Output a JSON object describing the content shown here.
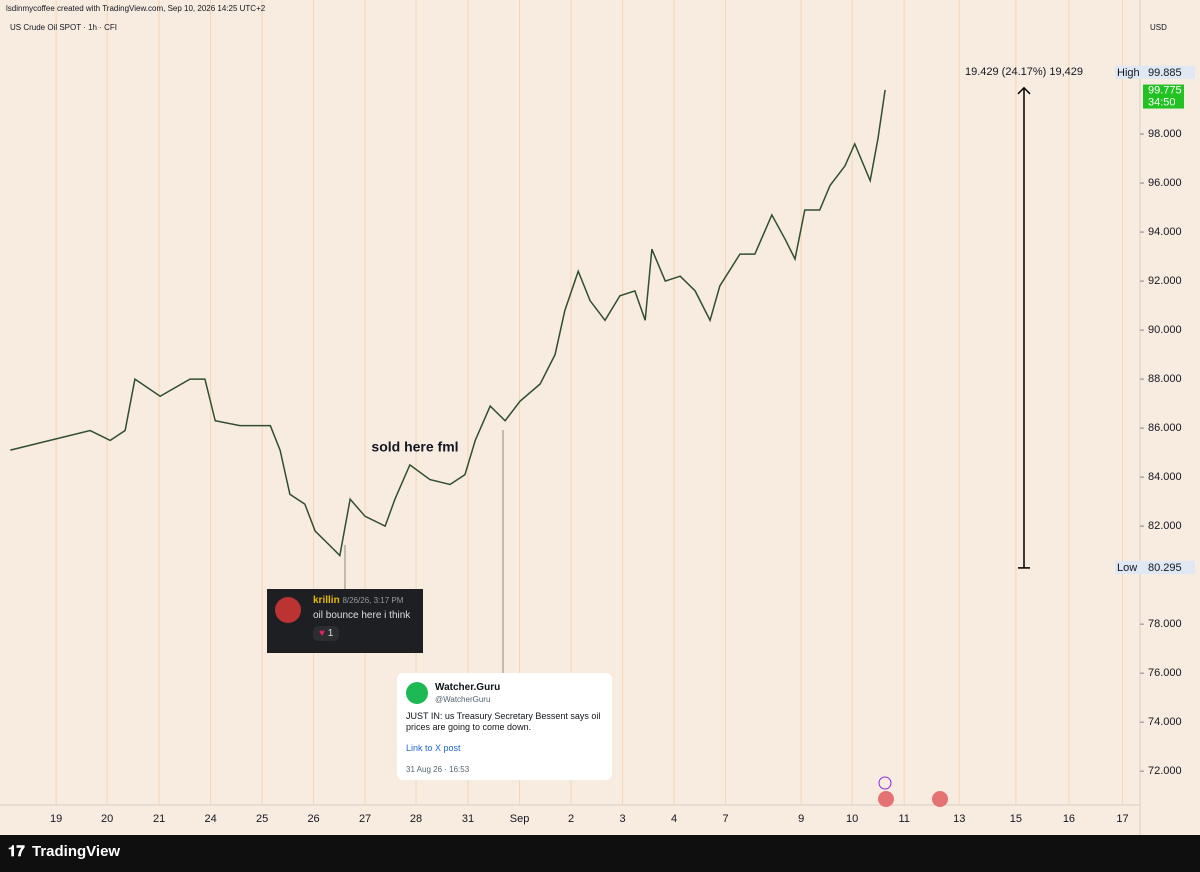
{
  "header": {
    "credit": "lsdinmycoffee created with TradingView.com, Sep 10, 2026 14:25 UTC+2",
    "symbol": "US Crude Oil SPOT · 1h · CFI",
    "currency": "USD"
  },
  "chart_data": {
    "type": "line",
    "color": "#2f4f2f",
    "x": [
      -0.89,
      -0.12,
      0.66,
      1.05,
      1.34,
      1.53,
      2.02,
      2.6,
      2.89,
      3.09,
      3.57,
      4.16,
      4.35,
      4.54,
      4.83,
      5.03,
      5.32,
      5.51,
      5.71,
      6.0,
      6.39,
      6.58,
      6.87,
      7.26,
      7.65,
      7.94,
      8.14,
      8.43,
      8.72,
      9.01,
      9.4,
      9.69,
      9.88,
      10.14,
      10.37,
      10.66,
      10.95,
      11.24,
      11.44,
      11.57,
      11.83,
      12.12,
      12.41,
      12.7,
      12.89,
      13.28,
      13.57,
      13.9,
      14.16,
      14.35,
      14.54,
      14.83,
      15.03,
      15.32,
      15.51,
      15.81,
      15.96,
      16.1
    ],
    "values": [
      85.1,
      85.5,
      85.9,
      85.5,
      85.9,
      88.0,
      87.3,
      88.0,
      88.0,
      86.3,
      86.1,
      86.1,
      85.1,
      83.3,
      82.9,
      81.8,
      81.2,
      80.8,
      83.1,
      82.4,
      82.0,
      83.1,
      84.5,
      83.9,
      83.7,
      84.1,
      85.5,
      86.9,
      86.3,
      87.1,
      87.8,
      89.0,
      90.8,
      92.4,
      91.2,
      90.4,
      91.4,
      91.6,
      90.4,
      93.3,
      92.0,
      92.2,
      91.6,
      90.4,
      91.8,
      93.1,
      93.1,
      94.7,
      93.7,
      92.9,
      94.9,
      94.9,
      95.9,
      96.7,
      97.6,
      96.1,
      97.8,
      99.8
    ],
    "xlim": [
      -1.09,
      21.05
    ],
    "xticks": [
      {
        "value": 0,
        "label": "19"
      },
      {
        "value": 0.99,
        "label": "20"
      },
      {
        "value": 2.0,
        "label": "21"
      },
      {
        "value": 3.0,
        "label": "24"
      },
      {
        "value": 4.0,
        "label": "25"
      },
      {
        "value": 5.0,
        "label": "26"
      },
      {
        "value": 6.0,
        "label": "27"
      },
      {
        "value": 6.99,
        "label": "28"
      },
      {
        "value": 8.0,
        "label": "31"
      },
      {
        "value": 9.0,
        "label": "Sep"
      },
      {
        "value": 10.0,
        "label": "2"
      },
      {
        "value": 11.0,
        "label": "3"
      },
      {
        "value": 12.0,
        "label": "4"
      },
      {
        "value": 13.0,
        "label": "7"
      },
      {
        "value": 14.47,
        "label": "9"
      },
      {
        "value": 15.46,
        "label": "10"
      },
      {
        "value": 16.47,
        "label": "11"
      },
      {
        "value": 17.54,
        "label": "13"
      },
      {
        "value": 18.64,
        "label": "15"
      },
      {
        "value": 19.67,
        "label": "16"
      },
      {
        "value": 20.71,
        "label": "17"
      }
    ],
    "ylim": [
      69.6,
      103.47
    ],
    "yticks": [
      {
        "value": 72,
        "label": "72.000"
      },
      {
        "value": 74,
        "label": "74.000"
      },
      {
        "value": 76,
        "label": "76.000"
      },
      {
        "value": 78,
        "label": "78.000"
      },
      {
        "value": 82,
        "label": "82.000"
      },
      {
        "value": 84,
        "label": "84.000"
      },
      {
        "value": 86,
        "label": "86.000"
      },
      {
        "value": 88,
        "label": "88.000"
      },
      {
        "value": 90,
        "label": "90.000"
      },
      {
        "value": 92,
        "label": "92.000"
      },
      {
        "value": 94,
        "label": "94.000"
      },
      {
        "value": 96,
        "label": "96.000"
      },
      {
        "value": 98,
        "label": "98.000"
      }
    ],
    "annotation": "sold here fml",
    "measure": {
      "label": "19.429 (24.17%) 19,429",
      "high_label": "High",
      "high": 99.885,
      "low_label": "Low",
      "low": 80.295
    },
    "last_price": 99.775,
    "countdown": "34:50"
  },
  "discord": {
    "user": "krillin",
    "time": "8/26/26, 3:17 PM",
    "message": "oil bounce here i think",
    "reactions": "1"
  },
  "tweet": {
    "name": "Watcher.Guru",
    "handle": "@WatcherGuru",
    "text": "JUST IN: us Treasury Secretary Bessent says oil prices are going to come down.",
    "link": "Link to X post",
    "date": "31 Aug 26 · 16:53"
  },
  "footer": {
    "brand": "TradingView"
  }
}
